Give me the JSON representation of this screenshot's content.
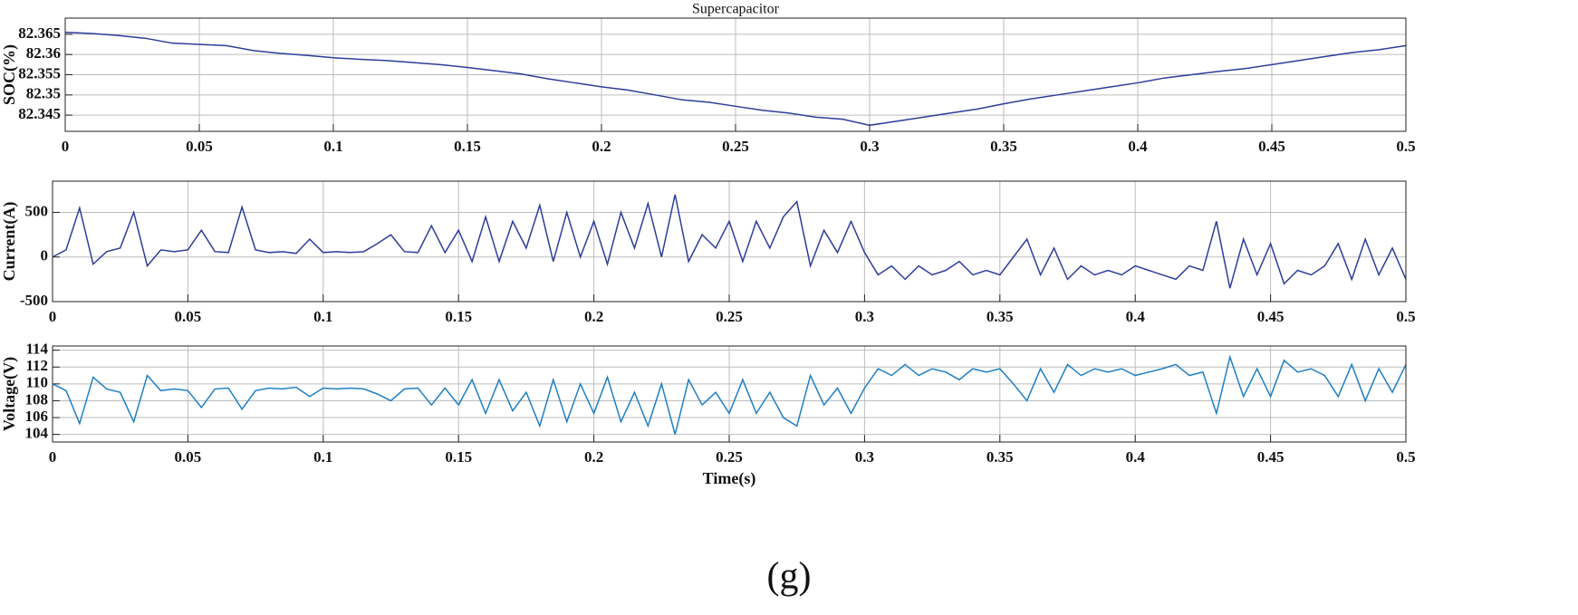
{
  "chart_data": [
    {
      "type": "line",
      "title": "Supercapacitor",
      "ylabel": "SOC(%)",
      "x": [
        0,
        0.01,
        0.02,
        0.03,
        0.04,
        0.05,
        0.06,
        0.07,
        0.08,
        0.09,
        0.1,
        0.11,
        0.12,
        0.13,
        0.14,
        0.15,
        0.16,
        0.17,
        0.18,
        0.19,
        0.2,
        0.21,
        0.22,
        0.23,
        0.24,
        0.25,
        0.26,
        0.27,
        0.28,
        0.29,
        0.3,
        0.31,
        0.32,
        0.33,
        0.34,
        0.35,
        0.36,
        0.37,
        0.38,
        0.39,
        0.4,
        0.41,
        0.42,
        0.43,
        0.44,
        0.45,
        0.46,
        0.47,
        0.48,
        0.49,
        0.5
      ],
      "series": [
        {
          "color": "#2e3d9a",
          "values": [
            82.3655,
            82.3652,
            82.3647,
            82.364,
            82.3628,
            82.3625,
            82.3622,
            82.361,
            82.3603,
            82.3598,
            82.3592,
            82.3588,
            82.3585,
            82.358,
            82.3575,
            82.3568,
            82.356,
            82.3552,
            82.354,
            82.353,
            82.352,
            82.3512,
            82.35,
            82.3488,
            82.3482,
            82.3472,
            82.3462,
            82.3455,
            82.3445,
            82.344,
            82.3425,
            82.3435,
            82.3445,
            82.3455,
            82.3465,
            82.3478,
            82.349,
            82.35,
            82.351,
            82.352,
            82.353,
            82.3542,
            82.355,
            82.3558,
            82.3565,
            82.3575,
            82.3585,
            82.3595,
            82.3605,
            82.3612,
            82.3622
          ]
        }
      ],
      "xlim": [
        0,
        0.5
      ],
      "xticks": [
        0,
        0.05,
        0.1,
        0.15,
        0.2,
        0.25,
        0.3,
        0.35,
        0.4,
        0.45,
        0.5
      ],
      "ylim": [
        82.341,
        82.369
      ],
      "yticks": [
        82.345,
        82.35,
        82.355,
        82.36,
        82.365
      ],
      "grid": true
    },
    {
      "type": "line",
      "ylabel": "Current(A)",
      "x": [
        0,
        0.005,
        0.01,
        0.015,
        0.02,
        0.025,
        0.03,
        0.035,
        0.04,
        0.045,
        0.05,
        0.055,
        0.06,
        0.065,
        0.07,
        0.075,
        0.08,
        0.085,
        0.09,
        0.095,
        0.1,
        0.105,
        0.11,
        0.115,
        0.12,
        0.125,
        0.13,
        0.135,
        0.14,
        0.145,
        0.15,
        0.155,
        0.16,
        0.165,
        0.17,
        0.175,
        0.18,
        0.185,
        0.19,
        0.195,
        0.2,
        0.205,
        0.21,
        0.215,
        0.22,
        0.225,
        0.23,
        0.235,
        0.24,
        0.245,
        0.25,
        0.255,
        0.26,
        0.265,
        0.27,
        0.275,
        0.28,
        0.285,
        0.29,
        0.295,
        0.3,
        0.305,
        0.31,
        0.315,
        0.32,
        0.325,
        0.33,
        0.335,
        0.34,
        0.345,
        0.35,
        0.355,
        0.36,
        0.365,
        0.37,
        0.375,
        0.38,
        0.385,
        0.39,
        0.395,
        0.4,
        0.405,
        0.41,
        0.415,
        0.42,
        0.425,
        0.43,
        0.435,
        0.44,
        0.445,
        0.45,
        0.455,
        0.46,
        0.465,
        0.47,
        0.475,
        0.48,
        0.485,
        0.49,
        0.495,
        0.5
      ],
      "series": [
        {
          "color": "#2e3d9a",
          "values": [
            0,
            80,
            550,
            -80,
            60,
            100,
            500,
            -100,
            80,
            60,
            80,
            300,
            60,
            50,
            560,
            80,
            50,
            60,
            40,
            200,
            50,
            60,
            50,
            60,
            150,
            250,
            60,
            50,
            350,
            50,
            300,
            -50,
            450,
            -50,
            400,
            100,
            580,
            -50,
            500,
            0,
            400,
            -80,
            500,
            100,
            600,
            0,
            700,
            -50,
            250,
            100,
            400,
            -50,
            400,
            100,
            450,
            620,
            -100,
            300,
            50,
            400,
            50,
            -200,
            -100,
            -250,
            -100,
            -200,
            -150,
            -50,
            -200,
            -150,
            -200,
            0,
            200,
            -200,
            100,
            -250,
            -100,
            -200,
            -150,
            -200,
            -100,
            -150,
            -200,
            -250,
            -100,
            -150,
            400,
            -350,
            200,
            -200,
            150,
            -300,
            -150,
            -200,
            -100,
            150,
            -250,
            200,
            -200,
            100,
            -250
          ]
        }
      ],
      "xlim": [
        0,
        0.5
      ],
      "xticks": [
        0,
        0.05,
        0.1,
        0.15,
        0.2,
        0.25,
        0.3,
        0.35,
        0.4,
        0.45,
        0.5
      ],
      "ylim": [
        -500,
        850
      ],
      "yticks": [
        -500,
        0,
        500
      ],
      "grid": true
    },
    {
      "type": "line",
      "ylabel": "Voltage(V)",
      "xlabel": "Time(s)",
      "x": [
        0,
        0.005,
        0.01,
        0.015,
        0.02,
        0.025,
        0.03,
        0.035,
        0.04,
        0.045,
        0.05,
        0.055,
        0.06,
        0.065,
        0.07,
        0.075,
        0.08,
        0.085,
        0.09,
        0.095,
        0.1,
        0.105,
        0.11,
        0.115,
        0.12,
        0.125,
        0.13,
        0.135,
        0.14,
        0.145,
        0.15,
        0.155,
        0.16,
        0.165,
        0.17,
        0.175,
        0.18,
        0.185,
        0.19,
        0.195,
        0.2,
        0.205,
        0.21,
        0.215,
        0.22,
        0.225,
        0.23,
        0.235,
        0.24,
        0.245,
        0.25,
        0.255,
        0.26,
        0.265,
        0.27,
        0.275,
        0.28,
        0.285,
        0.29,
        0.295,
        0.3,
        0.305,
        0.31,
        0.315,
        0.32,
        0.325,
        0.33,
        0.335,
        0.34,
        0.345,
        0.35,
        0.355,
        0.36,
        0.365,
        0.37,
        0.375,
        0.38,
        0.385,
        0.39,
        0.395,
        0.4,
        0.405,
        0.41,
        0.415,
        0.42,
        0.425,
        0.43,
        0.435,
        0.44,
        0.445,
        0.45,
        0.455,
        0.46,
        0.465,
        0.47,
        0.475,
        0.48,
        0.485,
        0.49,
        0.495,
        0.5
      ],
      "series": [
        {
          "color": "#1f7fc4",
          "values": [
            110,
            109.2,
            105.3,
            110.8,
            109.4,
            109,
            105.5,
            111,
            109.2,
            109.4,
            109.2,
            107.2,
            109.4,
            109.5,
            107,
            109.2,
            109.5,
            109.4,
            109.6,
            108.5,
            109.5,
            109.4,
            109.5,
            109.4,
            108.8,
            108,
            109.4,
            109.5,
            107.5,
            109.5,
            107.5,
            110.5,
            106.5,
            110.5,
            106.8,
            109,
            105,
            110.5,
            105.5,
            110,
            106.5,
            110.8,
            105.5,
            109,
            105,
            110,
            104,
            110.5,
            107.5,
            109,
            106.5,
            110.5,
            106.5,
            109,
            106,
            105,
            111,
            107.5,
            109.5,
            106.5,
            109.5,
            111.8,
            111,
            112.3,
            111,
            111.8,
            111.4,
            110.5,
            111.8,
            111.4,
            111.8,
            110,
            108,
            111.8,
            109,
            112.3,
            111,
            111.8,
            111.4,
            111.8,
            111,
            111.4,
            111.8,
            112.3,
            111,
            111.4,
            106.5,
            113.2,
            108.5,
            111.8,
            108.5,
            112.8,
            111.4,
            111.8,
            111,
            108.5,
            112.3,
            108,
            111.8,
            109,
            112.3
          ]
        }
      ],
      "xlim": [
        0,
        0.5
      ],
      "xticks": [
        0,
        0.05,
        0.1,
        0.15,
        0.2,
        0.25,
        0.3,
        0.35,
        0.4,
        0.45,
        0.5
      ],
      "ylim": [
        103.1,
        114.5
      ],
      "yticks": [
        104,
        106,
        108,
        110,
        112,
        114
      ],
      "grid": true
    }
  ],
  "caption": "(g)"
}
